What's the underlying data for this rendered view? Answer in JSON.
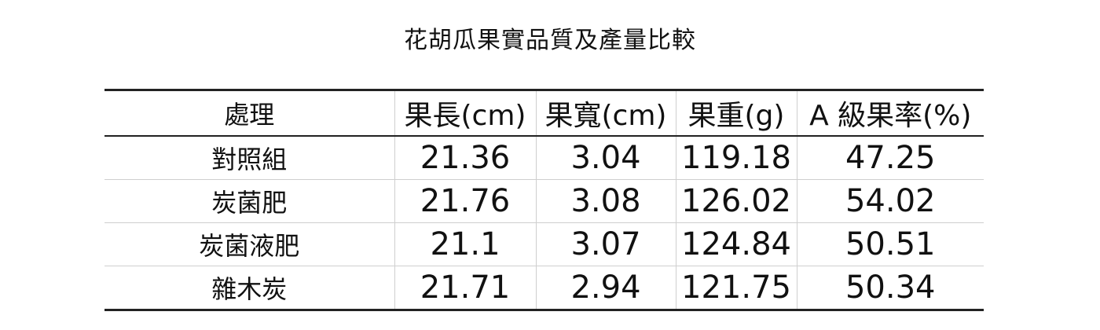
{
  "title": "花胡瓜果實品質及產量比較",
  "table": {
    "headers": [
      "處理",
      "果長(cm)",
      "果寬(cm)",
      "果重(g)",
      "A 級果率(%)"
    ],
    "rows": [
      [
        "對照組",
        "21.36",
        "3.04",
        "119.18",
        "47.25"
      ],
      [
        "炭菌肥",
        "21.76",
        "3.08",
        "126.02",
        "54.02"
      ],
      [
        "炭菌液肥",
        "21.1",
        "3.07",
        "124.84",
        "50.51"
      ],
      [
        "雜木炭",
        "21.71",
        "2.94",
        "121.75",
        "50.34"
      ]
    ]
  }
}
